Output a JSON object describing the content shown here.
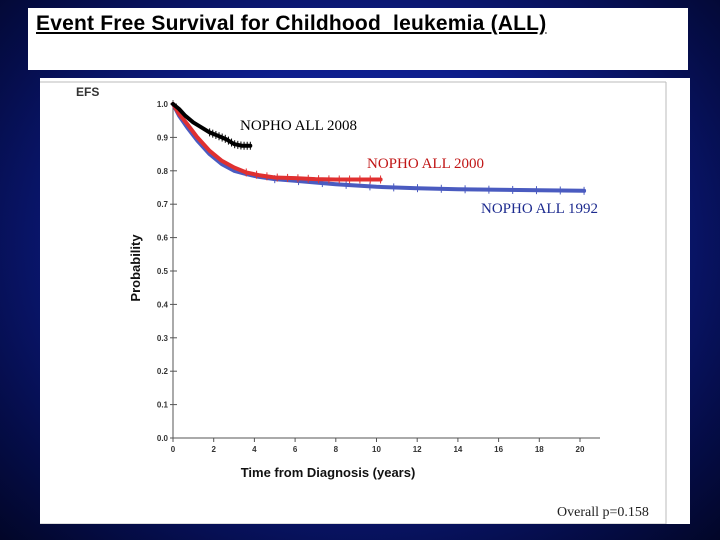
{
  "slide": {
    "title": "Event Free Survival for Childhood  leukemia (ALL)"
  },
  "chart_data": {
    "type": "line",
    "title": "EFS",
    "xlabel": "Time from Diagnosis (years)",
    "ylabel": "Probability",
    "xlim": [
      0,
      20
    ],
    "ylim": [
      0.0,
      1.0
    ],
    "xticks": [
      "0",
      "2",
      "4",
      "6",
      "8",
      "10",
      "12",
      "14",
      "16",
      "18",
      "20"
    ],
    "yticks": [
      "0.0",
      "0.1",
      "0.2",
      "0.3",
      "0.4",
      "0.5",
      "0.6",
      "0.7",
      "0.8",
      "0.9",
      "1.0"
    ],
    "annotation": "Overall p=0.158",
    "series": [
      {
        "name": "NOPHO ALL 2008",
        "color": "#000000",
        "x": [
          0,
          0.3,
          0.6,
          1.0,
          1.4,
          1.8,
          2.2,
          2.6,
          3.0,
          3.4,
          3.8
        ],
        "y": [
          1.0,
          0.985,
          0.965,
          0.945,
          0.93,
          0.915,
          0.905,
          0.895,
          0.88,
          0.875,
          0.875
        ]
      },
      {
        "name": "NOPHO ALL 2000",
        "color": "#e03030",
        "x": [
          0,
          0.3,
          0.7,
          1.2,
          1.8,
          2.4,
          3.0,
          3.6,
          4.2,
          5.0,
          6.0,
          7.0,
          8.0,
          9.0,
          10.2
        ],
        "y": [
          1.0,
          0.97,
          0.94,
          0.9,
          0.86,
          0.83,
          0.81,
          0.795,
          0.787,
          0.78,
          0.778,
          0.775,
          0.774,
          0.774,
          0.774
        ]
      },
      {
        "name": "NOPHO ALL 1992",
        "color": "#4a5bc0",
        "x": [
          0,
          0.3,
          0.7,
          1.2,
          1.8,
          2.4,
          3.0,
          3.6,
          4.2,
          5.0,
          6.0,
          7.0,
          8.0,
          10.0,
          12.0,
          14.0,
          16.0,
          18.0,
          20.2
        ],
        "y": [
          1.0,
          0.965,
          0.93,
          0.89,
          0.85,
          0.82,
          0.8,
          0.79,
          0.782,
          0.775,
          0.77,
          0.765,
          0.76,
          0.752,
          0.748,
          0.745,
          0.743,
          0.742,
          0.74
        ]
      }
    ]
  }
}
